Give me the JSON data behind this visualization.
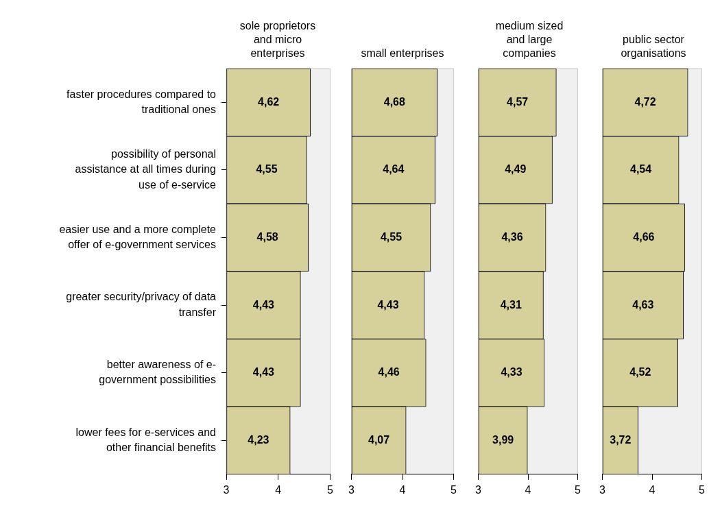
{
  "chart_data": [
    {
      "type": "bar",
      "orientation": "horizontal",
      "title": "sole proprietors and micro enterprises",
      "categories": [
        "faster procedures compared to traditional ones",
        "possibility of personal assistance at all times during use of e-service",
        "easier use and a more complete offer of e-government services",
        "greater security/privacy of data transfer",
        "better awareness of e-government possibilities",
        "lower fees for e-services and other financial benefits"
      ],
      "values": [
        4.62,
        4.55,
        4.58,
        4.43,
        4.43,
        4.23
      ],
      "value_labels": [
        "4,62",
        "4,55",
        "4,58",
        "4,43",
        "4,43",
        "4,23"
      ],
      "color": "#d6d09a",
      "xlim": [
        3,
        5
      ],
      "xticks": [
        3,
        4,
        5
      ]
    },
    {
      "type": "bar",
      "orientation": "horizontal",
      "title": "small enterprises",
      "categories": [
        null,
        null,
        null,
        null,
        null,
        null
      ],
      "values": [
        4.68,
        4.64,
        4.55,
        4.43,
        4.46,
        4.07
      ],
      "value_labels": [
        "4,68",
        "4,64",
        "4,55",
        "4,43",
        "4,46",
        "4,07"
      ],
      "color": "#d6d09a",
      "xlim": [
        3,
        5
      ],
      "xticks": [
        3,
        4,
        5
      ],
      "tick_labels": "x"
    },
    {
      "type": "bar",
      "orientation": "horizontal",
      "title": "medium sized and large companies",
      "categories": [
        null,
        null,
        null,
        null,
        null,
        null
      ],
      "values": [
        4.57,
        4.49,
        4.36,
        4.31,
        4.33,
        3.99
      ],
      "value_labels": [
        "4,57",
        "4,49",
        "4,36",
        "4,31",
        "4,33",
        "3,99"
      ],
      "color": "#d6d09a",
      "xlim": [
        3,
        5
      ],
      "xticks": [
        3,
        4,
        5
      ],
      "tick_labels": "x"
    },
    {
      "type": "bar",
      "orientation": "horizontal",
      "title": "public sector organisations",
      "categories": [
        null,
        null,
        null,
        null,
        null,
        null
      ],
      "values": [
        4.72,
        4.54,
        4.66,
        4.63,
        4.52,
        3.72
      ],
      "value_labels": [
        "4,72",
        "4,54",
        "4,66",
        "4,63",
        "4,52",
        "3,72"
      ],
      "color": "#d6d09a",
      "xlim": [
        3,
        5
      ],
      "xticks": [
        3,
        4,
        5
      ],
      "tick_labels": "x"
    }
  ]
}
